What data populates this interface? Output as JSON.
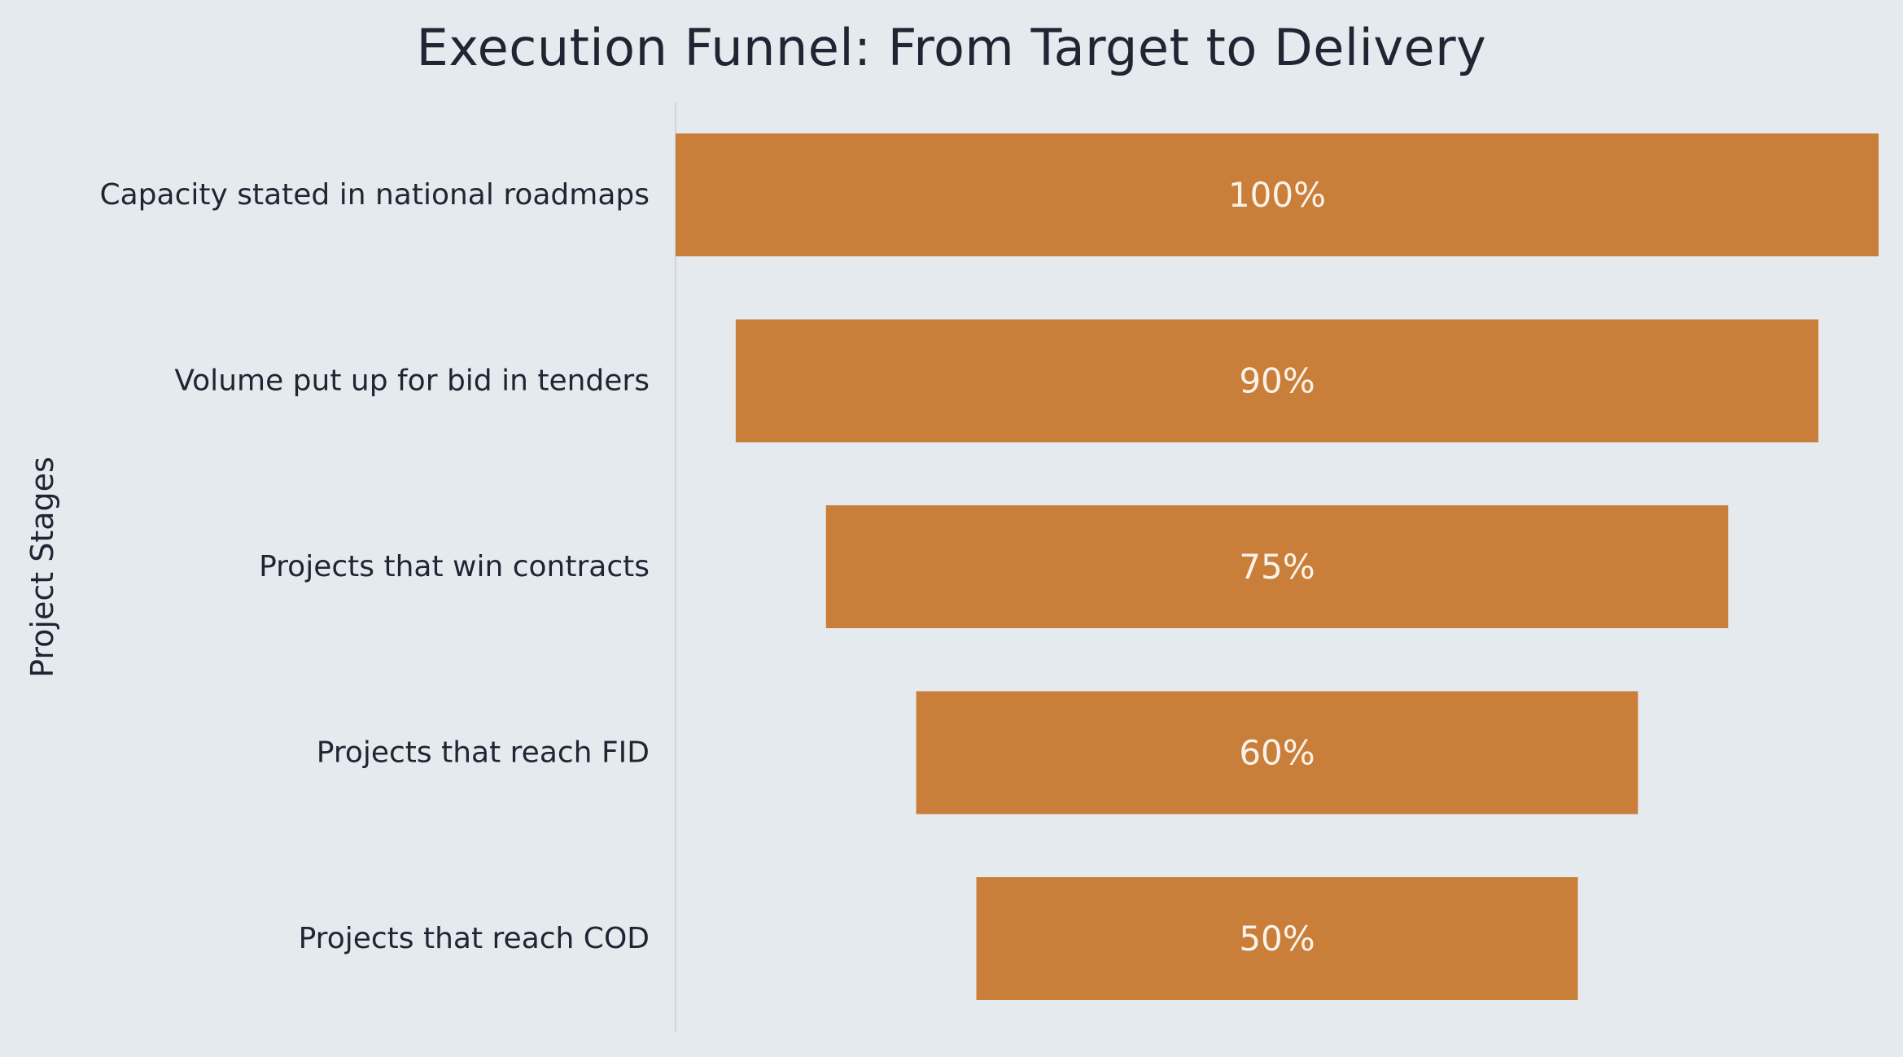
{
  "chart_data": {
    "type": "bar",
    "orientation": "horizontal-funnel",
    "title": "Execution Funnel: From Target to Delivery",
    "xlabel": "",
    "ylabel": "Project Stages",
    "categories": [
      "Capacity stated in national roadmaps",
      "Volume put up for bid in tenders",
      "Projects that win contracts",
      "Projects that reach FID",
      "Projects that reach COD"
    ],
    "values": [
      100,
      90,
      75,
      60,
      50
    ],
    "value_labels": [
      "100%",
      "90%",
      "75%",
      "60%",
      "50%"
    ],
    "xlim": [
      0,
      100
    ],
    "grid": false,
    "legend": "none",
    "colors": {
      "bar": "#c97e3a",
      "background": "#e5eaef",
      "axis_line": "#cdd3dc",
      "text": "#1e2633",
      "bar_text": "#fbf3ea"
    }
  }
}
